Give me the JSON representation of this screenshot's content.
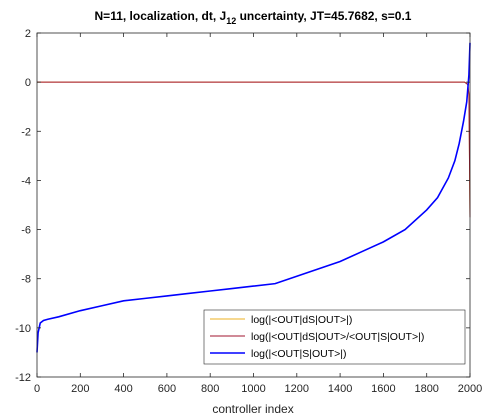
{
  "chart_data": {
    "type": "line",
    "title_main": "N=11, localization, dt, J",
    "title_sub": "12",
    "title_rest": " uncertainty, JT=45.7682, s=0.1",
    "xlabel": "controller index",
    "ylabel": "",
    "xlim": [
      0,
      2000
    ],
    "ylim": [
      -12,
      2
    ],
    "xticks": [
      0,
      200,
      400,
      600,
      800,
      1000,
      1200,
      1400,
      1600,
      1800,
      2000
    ],
    "yticks": [
      -12,
      -10,
      -8,
      -6,
      -4,
      -2,
      0,
      2
    ],
    "grid": false,
    "legend_position": "bottom-right",
    "series": [
      {
        "name": "log(|<OUT|dS|OUT>|)",
        "color": "#EDB120",
        "x": [
          0,
          1975,
          1990,
          1995,
          2000
        ],
        "y": [
          0,
          0,
          -0.1,
          -0.5,
          -5.5
        ]
      },
      {
        "name": "log(|<OUT|dS|OUT>/<OUT|S|OUT>|)",
        "color": "#A2142F",
        "x": [
          0,
          1975,
          1990,
          1995,
          2000
        ],
        "y": [
          0,
          0,
          -0.1,
          -0.5,
          -5.5
        ]
      },
      {
        "name": "log(|<OUT|S|OUT>|)",
        "color": "#0000FF",
        "x": [
          0,
          5,
          15,
          30,
          50,
          100,
          200,
          300,
          400,
          500,
          600,
          700,
          800,
          900,
          1000,
          1100,
          1200,
          1300,
          1400,
          1500,
          1600,
          1700,
          1800,
          1850,
          1900,
          1930,
          1950,
          1970,
          1985,
          1995,
          2000
        ],
        "y": [
          -11,
          -10.2,
          -9.8,
          -9.7,
          -9.65,
          -9.55,
          -9.3,
          -9.1,
          -8.9,
          -8.8,
          -8.7,
          -8.6,
          -8.5,
          -8.4,
          -8.3,
          -8.2,
          -7.9,
          -7.6,
          -7.3,
          -6.9,
          -6.5,
          -6.0,
          -5.2,
          -4.7,
          -3.9,
          -3.2,
          -2.5,
          -1.6,
          -0.8,
          0.3,
          1.6
        ]
      }
    ]
  }
}
